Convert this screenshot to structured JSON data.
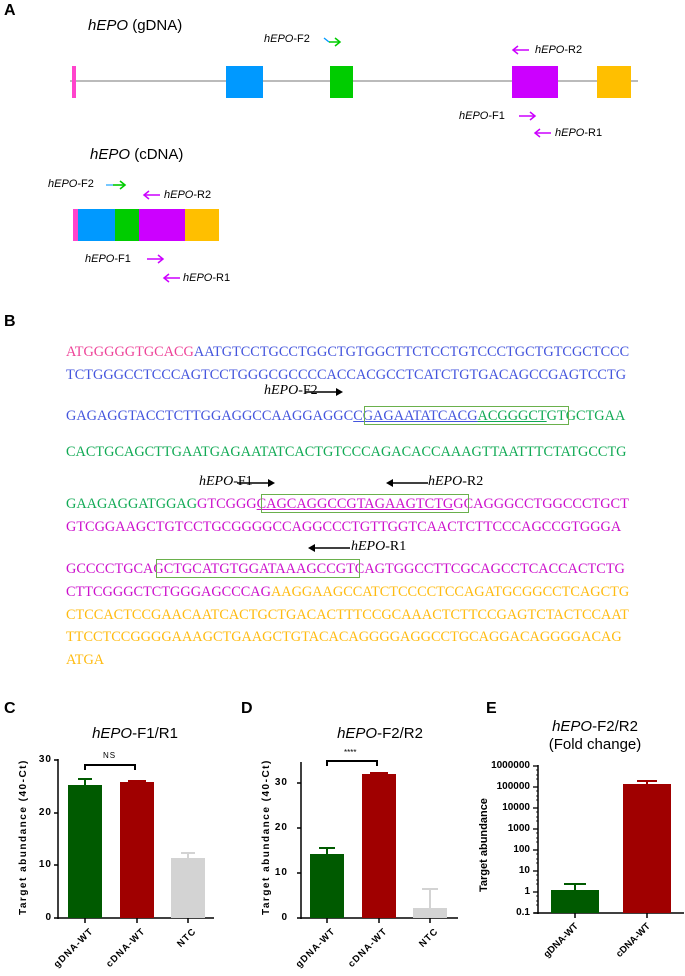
{
  "panels": {
    "A": {
      "label": "A",
      "gdna_title_gene": "hEPO",
      "gdna_title_suffix": " (gDNA)",
      "cdna_title_gene": "hEPO",
      "cdna_title_suffix": " (cDNA)",
      "primer_prefix": "hEPO",
      "gdna_primers": {
        "F2": "-F2",
        "R2": "-R2",
        "F1": "-F1",
        "R1": "-R1"
      },
      "cdna_primers": {
        "F2": "-F2",
        "R2": "-R2",
        "F1": "-F1",
        "R1": "-R1"
      },
      "exon_colors": [
        "#ff44cc",
        "#0099ff",
        "#00cc00",
        "#cc00ff",
        "#ffbf00"
      ],
      "intron_color": "#bbbbbb"
    },
    "B": {
      "label": "B",
      "primer_prefix": "hEPO",
      "annotations": {
        "F2": "-F2",
        "F1": "-F1",
        "R2": "-R2",
        "R1": "-R1"
      },
      "colors": {
        "exon1": "#ee4499",
        "exon2": "#4455dd",
        "exon3": "#11aa55",
        "exon4": "#cc11cc",
        "exon5": "#ffbb11",
        "box": "#6ab04c"
      },
      "lines": [
        [
          {
            "t": "ATGGGGGTGCACG",
            "c": "exon1"
          },
          {
            "t": "AATGTCCTGCCTGGCTGTGGCTTCTCCTGTCCCTGCTGTCGCTCCC",
            "c": "exon2"
          }
        ],
        [
          {
            "t": "TCTGGGCCTCCCAGTCCTGGGCGCCCCACCACGCCTCATCTGTGACAGCCGAGTCCTG",
            "c": "exon2"
          }
        ],
        [
          {
            "t": "GAGAGGTACCTCTTGGAGGCCAAGGAGGC",
            "c": "exon2"
          },
          {
            "t": "CGAGAATATCACG",
            "c": "exon2",
            "u": true
          },
          {
            "t": "ACGGGCT",
            "c": "exon3",
            "u": true
          },
          {
            "t": "GTGCTGAA",
            "c": "exon3"
          }
        ],
        [
          {
            "t": "CACTGCAGCTTGAATGAGAATATCACTGTCCCAGACACCAAAGTTAATTTCTATGCCTG",
            "c": "exon3"
          }
        ],
        [
          {
            "t": "GAAGAGGATGGAG",
            "c": "exon3"
          },
          {
            "t": "GTCGGG",
            "c": "exon4"
          },
          {
            "t": "CAGCAGGCCGTAGAAGTCTG",
            "c": "exon4",
            "u": true
          },
          {
            "t": "GCAGGGCCTGGCCCTGCT",
            "c": "exon4"
          }
        ],
        [
          {
            "t": "GTCGGAAGCTGTCCTGCGGGGCCAGGCCCTGTTGGTCAACTCTTCCCAGCCGTGGGA",
            "c": "exon4"
          }
        ],
        [
          {
            "t": "GCCCCTGCA",
            "c": "exon4"
          },
          {
            "t": "GCTGCATGTGGATAAAGCCG",
            "c": "exon4"
          },
          {
            "t": "TCAGTGGCCTTCGCAGCCTCACCACTCTG",
            "c": "exon4"
          }
        ],
        [
          {
            "t": "CTTCGGGCTCTGGGAGCCCAG",
            "c": "exon4"
          },
          {
            "t": "AAGGAAGCCATCTCCCCTCCAGATGCGGCCTCAGCTG",
            "c": "exon5"
          }
        ],
        [
          {
            "t": "CTCCACTCCGAACAATCACTGCTGACACTTTCCGCAAACTCTTCCGAGTCTACTCCAAT",
            "c": "exon5"
          }
        ],
        [
          {
            "t": "TTCCTCCGGGGAAAGCTGAAGCTGTACACAGGGGAGGCCTGCAGGACAGGGGACAG",
            "c": "exon5"
          }
        ],
        [
          {
            "t": "ATGA",
            "c": "exon5"
          }
        ]
      ]
    },
    "C": {
      "label": "C"
    },
    "D": {
      "label": "D"
    },
    "E": {
      "label": "E"
    }
  },
  "chart_data": [
    {
      "panel": "C",
      "type": "bar",
      "title_gene": "hEPO",
      "title_suffix": "-F1/R1",
      "title": "hEPO-F1/R1",
      "categories": [
        "gDNA-WT",
        "cDNA-WT",
        "NTC"
      ],
      "values": [
        25.2,
        25.7,
        11.3
      ],
      "errors": [
        1.0,
        0.2,
        0.9
      ],
      "colors": [
        "#005a00",
        "#a00000",
        "#d3d3d3"
      ],
      "ylabel": "Target abundance (40-Ct)",
      "xlabel": "",
      "ylim": [
        0,
        30
      ],
      "yticks": [
        "0",
        "10",
        "20",
        "30"
      ],
      "significance": {
        "between": [
          "gDNA-WT",
          "cDNA-WT"
        ],
        "label": "NS"
      },
      "grid": false
    },
    {
      "panel": "D",
      "type": "bar",
      "title_gene": "hEPO",
      "title_suffix": "-F2/R2",
      "title": "hEPO-F2/R2",
      "categories": [
        "gDNA-WT",
        "cDNA-WT",
        "NTC"
      ],
      "values": [
        14.2,
        32.1,
        2.3
      ],
      "errors": [
        1.4,
        0.4,
        4.2
      ],
      "colors": [
        "#005a00",
        "#a00000",
        "#d3d3d3"
      ],
      "ylabel": "Target abundance (40-Ct)",
      "xlabel": "",
      "ylim": [
        0,
        35
      ],
      "yticks": [
        "0",
        "10",
        "20",
        "30"
      ],
      "significance": {
        "between": [
          "gDNA-WT",
          "cDNA-WT"
        ],
        "label": "****"
      },
      "grid": false
    },
    {
      "panel": "E",
      "type": "bar",
      "title_gene": "hEPO",
      "title_suffix": "-F2/R2",
      "subtitle": "(Fold change)",
      "title": "hEPO-F2/R2 (Fold change)",
      "categories": [
        "gDNA-WT",
        "cDNA-WT"
      ],
      "values": [
        1.3,
        150000
      ],
      "errors_upper": [
        2.5,
        190000
      ],
      "colors": [
        "#005a00",
        "#a00000"
      ],
      "ylabel": "Target abundance",
      "xlabel": "",
      "yscale": "log",
      "ylim": [
        0.1,
        1000000
      ],
      "yticks": [
        "0.1",
        "1",
        "10",
        "100",
        "1000",
        "10000",
        "100000",
        "1000000"
      ],
      "grid": false
    }
  ]
}
